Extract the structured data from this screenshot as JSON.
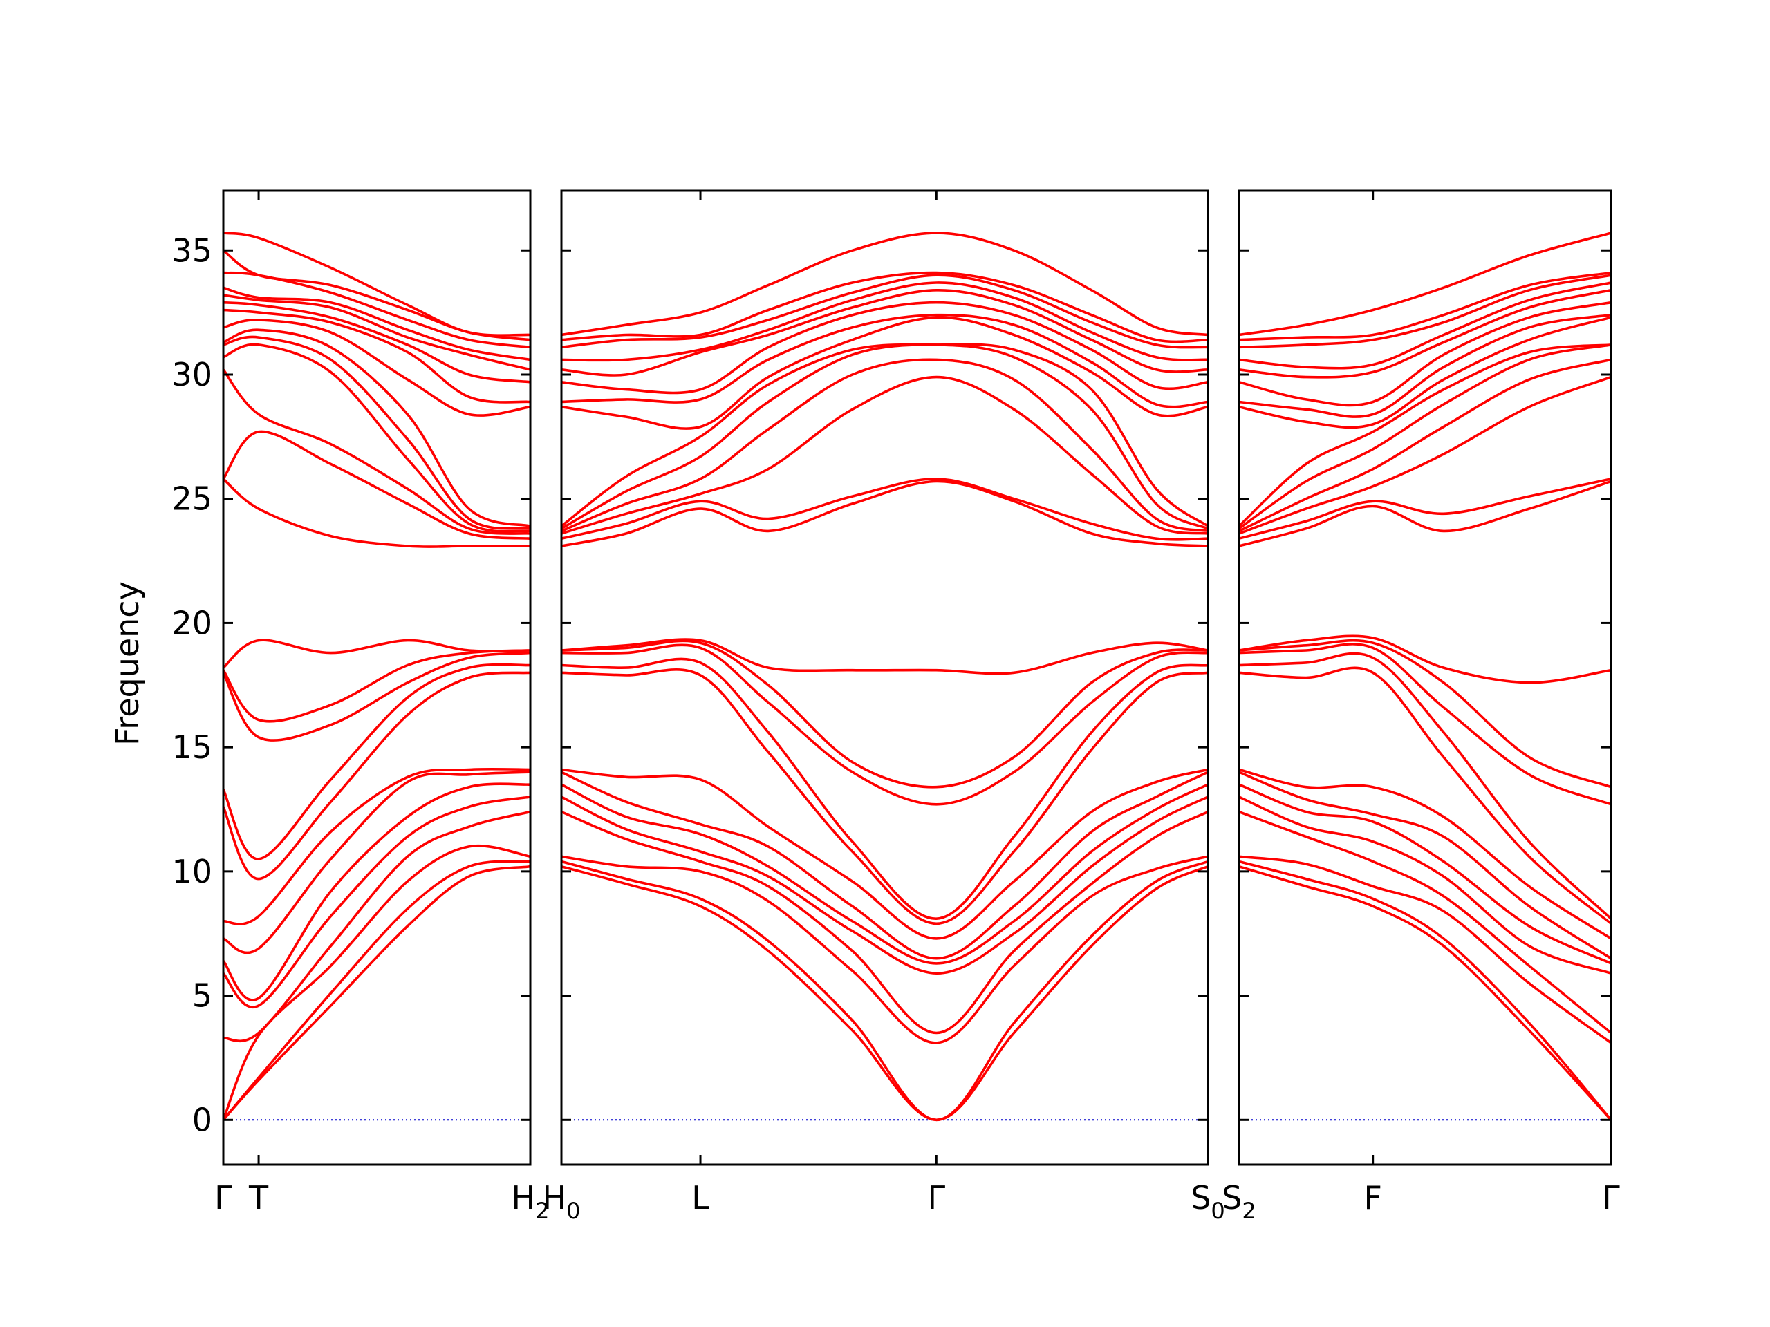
{
  "chart_data": {
    "type": "line",
    "ylabel": "Frequency",
    "ylim": [
      -1.8,
      37.4
    ],
    "yticks": [
      0,
      5,
      10,
      15,
      20,
      25,
      30,
      35
    ],
    "colors": {
      "bands": "#ff0000",
      "zero_line": "#0000cc",
      "axes": "#000000"
    },
    "grid": false,
    "panels": [
      {
        "labels": [
          {
            "text": "Γ",
            "sub": "",
            "x": 0.0
          },
          {
            "text": "T",
            "sub": "",
            "x": 0.115
          },
          {
            "text": "H",
            "sub": "2",
            "x": 1.0
          }
        ],
        "x": [
          0,
          0.115,
          0.35,
          0.6,
          0.8,
          1.0
        ],
        "series": [
          [
            0,
            1.6,
            4.6,
            7.8,
            9.8,
            10.2
          ],
          [
            0,
            1.7,
            5.1,
            8.5,
            10.2,
            10.4
          ],
          [
            0,
            3.4,
            6.2,
            9.6,
            11.0,
            10.6
          ],
          [
            3.3,
            3.5,
            7.0,
            10.6,
            11.8,
            12.4
          ],
          [
            5.9,
            4.6,
            8.2,
            11.4,
            12.6,
            13.0
          ],
          [
            6.4,
            4.9,
            9.2,
            12.2,
            13.4,
            13.5
          ],
          [
            7.3,
            6.9,
            10.5,
            13.6,
            13.9,
            14.0
          ],
          [
            8.0,
            8.2,
            11.6,
            13.8,
            14.1,
            14.1
          ],
          [
            12.6,
            9.7,
            12.8,
            16.3,
            17.8,
            18.0
          ],
          [
            13.3,
            10.5,
            13.7,
            17.0,
            18.2,
            18.3
          ],
          [
            18.0,
            15.4,
            15.9,
            17.6,
            18.6,
            18.8
          ],
          [
            18.1,
            16.1,
            16.7,
            18.3,
            18.8,
            18.9
          ],
          [
            18.2,
            19.3,
            18.8,
            19.3,
            18.9,
            18.9
          ],
          [
            25.8,
            24.6,
            23.5,
            23.1,
            23.1,
            23.1
          ],
          [
            25.8,
            27.7,
            26.4,
            24.8,
            23.6,
            23.4
          ],
          [
            30.2,
            28.4,
            27.2,
            25.4,
            23.8,
            23.6
          ],
          [
            30.7,
            31.2,
            30.1,
            26.6,
            24.0,
            23.7
          ],
          [
            31.2,
            31.5,
            30.6,
            27.4,
            24.2,
            23.8
          ],
          [
            31.3,
            31.8,
            31.1,
            28.4,
            24.6,
            23.9
          ],
          [
            31.9,
            32.2,
            31.7,
            29.8,
            28.4,
            28.7
          ],
          [
            32.6,
            32.5,
            32.1,
            30.9,
            29.1,
            28.9
          ],
          [
            32.9,
            32.8,
            32.3,
            31.2,
            30.0,
            29.7
          ],
          [
            33.2,
            33.0,
            32.7,
            31.5,
            30.8,
            30.2
          ],
          [
            33.5,
            33.1,
            32.9,
            31.8,
            31.0,
            30.6
          ],
          [
            34.1,
            34.0,
            33.3,
            32.2,
            31.4,
            31.1
          ],
          [
            35.0,
            34.0,
            33.6,
            32.6,
            31.7,
            31.4
          ],
          [
            35.7,
            35.5,
            34.3,
            32.8,
            31.7,
            31.6
          ]
        ]
      },
      {
        "labels": [
          {
            "text": "H",
            "sub": "0",
            "x": 0.0
          },
          {
            "text": "L",
            "sub": "",
            "x": 0.215
          },
          {
            "text": "Γ",
            "sub": "",
            "x": 0.58
          },
          {
            "text": "S",
            "sub": "0",
            "x": 1.0
          }
        ],
        "x": [
          0,
          0.1,
          0.215,
          0.32,
          0.45,
          0.58,
          0.7,
          0.82,
          0.92,
          1.0
        ],
        "series": [
          [
            10.2,
            9.5,
            8.6,
            6.8,
            3.6,
            0,
            3.5,
            7.0,
            9.3,
            10.2
          ],
          [
            10.4,
            9.7,
            8.9,
            7.2,
            4.0,
            0,
            3.9,
            7.4,
            9.6,
            10.4
          ],
          [
            10.6,
            10.2,
            10.0,
            8.8,
            6.0,
            3.1,
            6.2,
            9.0,
            10.1,
            10.6
          ],
          [
            12.4,
            11.3,
            10.4,
            9.4,
            6.8,
            3.5,
            6.8,
            9.5,
            11.4,
            12.4
          ],
          [
            13.0,
            11.7,
            10.8,
            9.8,
            7.6,
            5.9,
            7.5,
            10.2,
            12.0,
            13.0
          ],
          [
            13.5,
            12.2,
            11.5,
            10.2,
            8.0,
            6.3,
            8.0,
            10.8,
            12.5,
            13.5
          ],
          [
            14.0,
            12.8,
            11.9,
            11.0,
            8.6,
            6.5,
            8.6,
            11.6,
            13.0,
            14.0
          ],
          [
            14.1,
            13.8,
            13.7,
            11.8,
            9.6,
            7.3,
            9.6,
            12.4,
            13.6,
            14.1
          ],
          [
            18.0,
            17.9,
            17.9,
            14.8,
            10.8,
            7.9,
            10.8,
            14.9,
            17.6,
            18.0
          ],
          [
            18.3,
            18.2,
            18.4,
            15.6,
            11.2,
            8.1,
            11.4,
            15.6,
            18.0,
            18.3
          ],
          [
            18.8,
            18.8,
            19.0,
            16.8,
            14.0,
            12.7,
            14.0,
            16.8,
            18.6,
            18.8
          ],
          [
            18.9,
            19.0,
            19.2,
            17.5,
            14.4,
            13.4,
            14.6,
            17.6,
            18.8,
            18.9
          ],
          [
            18.9,
            19.1,
            19.3,
            18.2,
            18.1,
            18.1,
            18.0,
            18.8,
            19.2,
            18.9
          ],
          [
            23.1,
            23.6,
            24.6,
            23.7,
            24.8,
            25.7,
            24.9,
            23.6,
            23.2,
            23.1
          ],
          [
            23.4,
            24.0,
            24.9,
            24.2,
            25.1,
            25.8,
            25.0,
            24.0,
            23.4,
            23.4
          ],
          [
            23.6,
            24.4,
            25.2,
            26.2,
            28.6,
            29.9,
            28.6,
            26.0,
            23.9,
            23.6
          ],
          [
            23.7,
            24.8,
            25.8,
            27.8,
            30.0,
            30.6,
            29.8,
            27.0,
            24.2,
            23.7
          ],
          [
            23.8,
            25.3,
            26.7,
            28.9,
            30.8,
            31.2,
            30.7,
            28.6,
            24.8,
            23.8
          ],
          [
            23.9,
            25.9,
            27.5,
            29.6,
            31.0,
            31.2,
            31.0,
            29.4,
            25.4,
            23.9
          ],
          [
            28.7,
            28.3,
            27.9,
            29.9,
            31.4,
            32.3,
            31.6,
            30.1,
            28.4,
            28.7
          ],
          [
            28.9,
            29.0,
            29.0,
            30.6,
            31.9,
            32.4,
            32.0,
            30.5,
            28.8,
            28.9
          ],
          [
            29.7,
            29.4,
            29.4,
            31.1,
            32.4,
            32.9,
            32.4,
            31.0,
            29.5,
            29.7
          ],
          [
            30.2,
            30.0,
            30.9,
            31.6,
            32.7,
            33.4,
            32.8,
            31.4,
            30.2,
            30.2
          ],
          [
            30.6,
            30.6,
            31.0,
            31.8,
            33.0,
            33.7,
            33.1,
            31.7,
            30.7,
            30.6
          ],
          [
            31.1,
            31.4,
            31.5,
            32.2,
            33.3,
            34.0,
            33.4,
            32.1,
            31.2,
            31.1
          ],
          [
            31.4,
            31.6,
            31.6,
            32.6,
            33.7,
            34.1,
            33.6,
            32.4,
            31.4,
            31.4
          ],
          [
            31.6,
            32.0,
            32.5,
            33.6,
            35.0,
            35.7,
            35.0,
            33.4,
            31.9,
            31.6
          ]
        ]
      },
      {
        "labels": [
          {
            "text": "S",
            "sub": "2",
            "x": 0.0
          },
          {
            "text": "F",
            "sub": "",
            "x": 0.36
          },
          {
            "text": "Γ",
            "sub": "",
            "x": 1.0
          }
        ],
        "x": [
          0,
          0.18,
          0.36,
          0.55,
          0.78,
          1.0
        ],
        "series": [
          [
            10.2,
            9.4,
            8.6,
            7.0,
            3.6,
            0
          ],
          [
            10.4,
            9.7,
            8.9,
            7.3,
            3.9,
            0
          ],
          [
            10.6,
            10.3,
            9.4,
            8.4,
            5.5,
            3.1
          ],
          [
            12.4,
            11.4,
            10.4,
            9.0,
            6.2,
            3.5
          ],
          [
            13.0,
            11.8,
            11.2,
            9.8,
            7.0,
            5.9
          ],
          [
            13.5,
            12.4,
            12.0,
            10.4,
            7.8,
            6.3
          ],
          [
            14.0,
            12.9,
            12.3,
            11.4,
            8.6,
            6.5
          ],
          [
            14.1,
            13.4,
            13.4,
            12.2,
            9.4,
            7.3
          ],
          [
            18.0,
            17.8,
            18.0,
            14.6,
            10.6,
            7.9
          ],
          [
            18.3,
            18.4,
            18.6,
            15.6,
            11.2,
            8.1
          ],
          [
            18.8,
            18.9,
            19.0,
            16.6,
            13.9,
            12.7
          ],
          [
            18.9,
            19.1,
            19.2,
            17.6,
            14.6,
            13.4
          ],
          [
            18.9,
            19.3,
            19.4,
            18.2,
            17.6,
            18.1
          ],
          [
            23.1,
            23.8,
            24.7,
            23.7,
            24.6,
            25.7
          ],
          [
            23.4,
            24.1,
            24.9,
            24.4,
            25.1,
            25.8
          ],
          [
            23.6,
            24.6,
            25.5,
            26.8,
            28.7,
            29.9
          ],
          [
            23.7,
            25.0,
            26.2,
            27.9,
            29.8,
            30.6
          ],
          [
            23.8,
            25.7,
            27.0,
            28.8,
            30.6,
            31.2
          ],
          [
            23.9,
            26.4,
            27.7,
            29.4,
            30.9,
            31.2
          ],
          [
            28.7,
            28.1,
            28.0,
            29.8,
            31.4,
            32.3
          ],
          [
            28.9,
            28.6,
            28.4,
            30.3,
            31.9,
            32.4
          ],
          [
            29.7,
            29.0,
            28.9,
            30.8,
            32.3,
            32.9
          ],
          [
            30.2,
            29.9,
            30.1,
            31.3,
            32.7,
            33.4
          ],
          [
            30.6,
            30.3,
            30.4,
            31.6,
            33.0,
            33.7
          ],
          [
            31.1,
            31.2,
            31.4,
            32.1,
            33.4,
            34.0
          ],
          [
            31.4,
            31.5,
            31.6,
            32.4,
            33.6,
            34.1
          ],
          [
            31.6,
            32.0,
            32.6,
            33.5,
            34.8,
            35.7
          ]
        ]
      }
    ]
  }
}
